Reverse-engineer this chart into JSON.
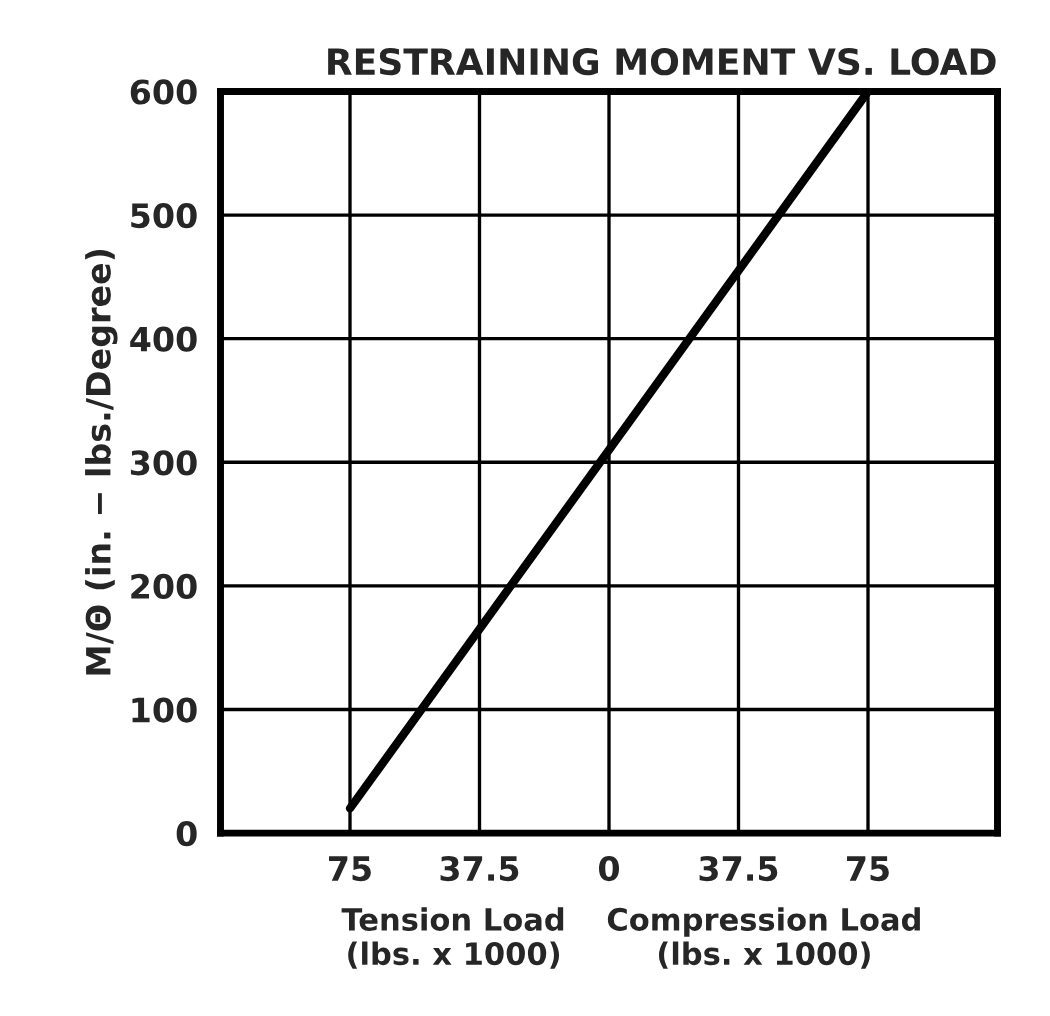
{
  "chart_data": {
    "type": "line",
    "title": "RESTRAINING MOMENT VS. LOAD",
    "ylabel": "M/Θ (in. − lbs./Degree)",
    "annotations": [
      "Tension Load\n(lbs. x 1000)",
      "Compression Load\n(lbs. x 1000)"
    ],
    "x": [
      -75,
      75
    ],
    "series": [
      {
        "color": "#000000",
        "values": [
          20,
          600
        ]
      }
    ],
    "xlim": [
      -112.5,
      112.5
    ],
    "xticks": [
      {
        "value": -75,
        "label": "75"
      },
      {
        "value": -37.5,
        "label": "37.5"
      },
      0,
      37.5,
      75
    ],
    "ylim": [
      0,
      600
    ],
    "yticks": [
      0,
      100,
      200,
      300,
      400,
      500,
      600
    ],
    "grid": true,
    "marker": "none",
    "line_style": "solid"
  }
}
